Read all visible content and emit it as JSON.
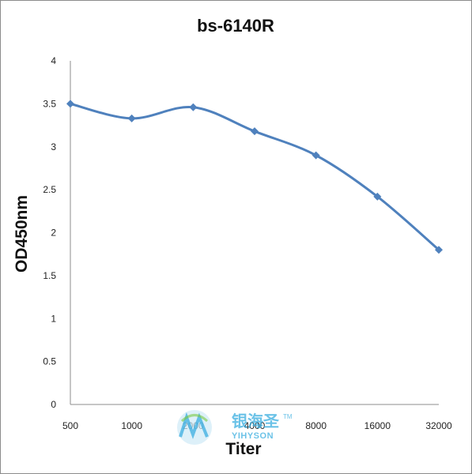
{
  "chart_data": {
    "type": "line",
    "title": "bs-6140R",
    "xlabel": "Titer",
    "ylabel": "OD450nm",
    "categories": [
      "500",
      "1000",
      "2000",
      "4000",
      "8000",
      "16000",
      "32000"
    ],
    "series": [
      {
        "values": [
          3.5,
          3.33,
          3.46,
          3.18,
          2.9,
          2.42,
          1.8
        ]
      }
    ],
    "ylim": [
      0,
      4
    ],
    "yticks": [
      "0",
      "0.5",
      "1",
      "1.5",
      "2",
      "2.5",
      "3",
      "3.5",
      "4"
    ],
    "grid": false,
    "line_color": "#4f81bd"
  },
  "watermark": {
    "cn": "银海圣",
    "en": "YIHYSON",
    "tm": "TM"
  }
}
